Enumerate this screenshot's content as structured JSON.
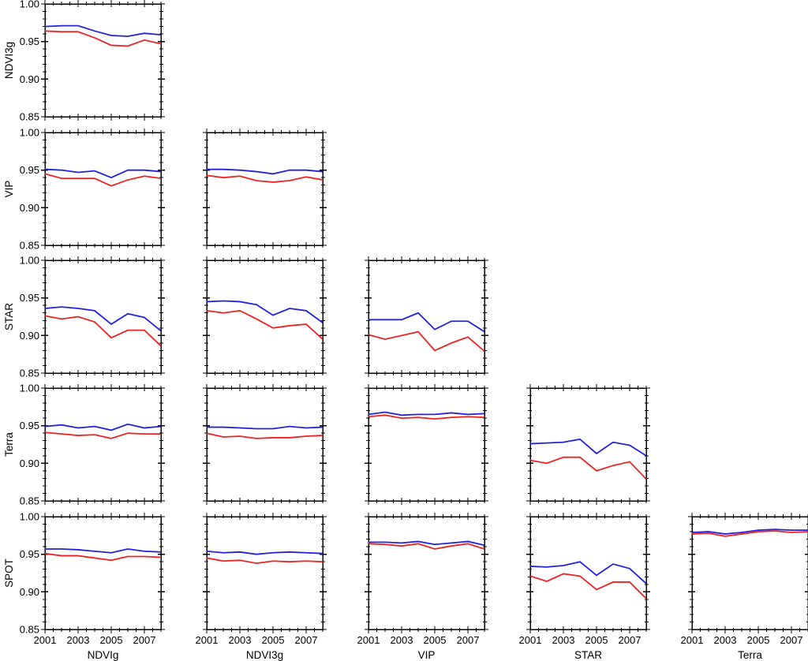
{
  "figure": {
    "background": "#ffffff",
    "axis_color": "#000000",
    "text_color": "#000000",
    "row_labels": [
      "NDVI3g",
      "VIP",
      "STAR",
      "Terra",
      "SPOT"
    ],
    "col_labels": [
      "NDVIg",
      "NDVI3g",
      "VIP",
      "STAR",
      "Terra"
    ]
  },
  "series_colors": {
    "blue": "#2222dd",
    "red": "#ee2222"
  },
  "axes": {
    "xlim": [
      2001,
      2008
    ],
    "ylim": [
      0.85,
      1.0
    ],
    "x_major_ticks": [
      2001,
      2003,
      2005,
      2007
    ],
    "x_tick_labels": [
      "2001",
      "2003",
      "2005",
      "2007"
    ],
    "x_minor_step": 0.5,
    "y_major_ticks": [
      0.85,
      0.9,
      0.95,
      1.0
    ],
    "y_tick_labels": [
      "0.85",
      "0.90",
      "0.95",
      "1.00"
    ],
    "y_minor_step": 0.01,
    "grid": false,
    "legend": "none"
  },
  "chart_data": [
    {
      "type": "line",
      "row": 0,
      "col": 0,
      "y_dataset": "NDVI3g",
      "x_dataset": "NDVIg",
      "x": [
        2001,
        2002,
        2003,
        2004,
        2005,
        2006,
        2007,
        2008
      ],
      "series": [
        {
          "name": "blue",
          "values": [
            0.97,
            0.971,
            0.971,
            0.964,
            0.958,
            0.957,
            0.961,
            0.959
          ]
        },
        {
          "name": "red",
          "values": [
            0.964,
            0.963,
            0.963,
            0.955,
            0.945,
            0.944,
            0.952,
            0.947
          ]
        }
      ]
    },
    {
      "type": "line",
      "row": 1,
      "col": 0,
      "y_dataset": "VIP",
      "x_dataset": "NDVIg",
      "x": [
        2001,
        2002,
        2003,
        2004,
        2005,
        2006,
        2007,
        2008
      ],
      "series": [
        {
          "name": "blue",
          "values": [
            0.951,
            0.95,
            0.947,
            0.949,
            0.94,
            0.95,
            0.95,
            0.948
          ]
        },
        {
          "name": "red",
          "values": [
            0.945,
            0.939,
            0.939,
            0.939,
            0.929,
            0.937,
            0.942,
            0.939
          ]
        }
      ]
    },
    {
      "type": "line",
      "row": 1,
      "col": 1,
      "y_dataset": "VIP",
      "x_dataset": "NDVI3g",
      "x": [
        2001,
        2002,
        2003,
        2004,
        2005,
        2006,
        2007,
        2008
      ],
      "series": [
        {
          "name": "blue",
          "values": [
            0.951,
            0.951,
            0.95,
            0.948,
            0.945,
            0.95,
            0.95,
            0.948
          ]
        },
        {
          "name": "red",
          "values": [
            0.943,
            0.94,
            0.942,
            0.936,
            0.934,
            0.936,
            0.941,
            0.937
          ]
        }
      ]
    },
    {
      "type": "line",
      "row": 2,
      "col": 0,
      "y_dataset": "STAR",
      "x_dataset": "NDVIg",
      "x": [
        2001,
        2002,
        2003,
        2004,
        2005,
        2006,
        2007,
        2008
      ],
      "series": [
        {
          "name": "blue",
          "values": [
            0.936,
            0.938,
            0.936,
            0.933,
            0.915,
            0.929,
            0.924,
            0.906
          ]
        },
        {
          "name": "red",
          "values": [
            0.926,
            0.922,
            0.925,
            0.918,
            0.897,
            0.907,
            0.907,
            0.886
          ]
        }
      ]
    },
    {
      "type": "line",
      "row": 2,
      "col": 1,
      "y_dataset": "STAR",
      "x_dataset": "NDVI3g",
      "x": [
        2001,
        2002,
        2003,
        2004,
        2005,
        2006,
        2007,
        2008
      ],
      "series": [
        {
          "name": "blue",
          "values": [
            0.945,
            0.946,
            0.945,
            0.941,
            0.927,
            0.936,
            0.933,
            0.917
          ]
        },
        {
          "name": "red",
          "values": [
            0.933,
            0.93,
            0.933,
            0.922,
            0.91,
            0.913,
            0.915,
            0.895
          ]
        }
      ]
    },
    {
      "type": "line",
      "row": 2,
      "col": 2,
      "y_dataset": "STAR",
      "x_dataset": "VIP",
      "x": [
        2001,
        2002,
        2003,
        2004,
        2005,
        2006,
        2007,
        2008
      ],
      "series": [
        {
          "name": "blue",
          "values": [
            0.921,
            0.921,
            0.921,
            0.93,
            0.908,
            0.919,
            0.919,
            0.905
          ]
        },
        {
          "name": "red",
          "values": [
            0.901,
            0.895,
            0.9,
            0.905,
            0.88,
            0.89,
            0.898,
            0.879
          ]
        }
      ]
    },
    {
      "type": "line",
      "row": 3,
      "col": 0,
      "y_dataset": "Terra",
      "x_dataset": "NDVIg",
      "x": [
        2001,
        2002,
        2003,
        2004,
        2005,
        2006,
        2007,
        2008
      ],
      "series": [
        {
          "name": "blue",
          "values": [
            0.949,
            0.951,
            0.947,
            0.949,
            0.944,
            0.952,
            0.947,
            0.949
          ]
        },
        {
          "name": "red",
          "values": [
            0.941,
            0.939,
            0.937,
            0.938,
            0.933,
            0.94,
            0.939,
            0.939
          ]
        }
      ]
    },
    {
      "type": "line",
      "row": 3,
      "col": 1,
      "y_dataset": "Terra",
      "x_dataset": "NDVI3g",
      "x": [
        2001,
        2002,
        2003,
        2004,
        2005,
        2006,
        2007,
        2008
      ],
      "series": [
        {
          "name": "blue",
          "values": [
            0.948,
            0.948,
            0.947,
            0.946,
            0.946,
            0.949,
            0.947,
            0.948
          ]
        },
        {
          "name": "red",
          "values": [
            0.94,
            0.935,
            0.936,
            0.933,
            0.934,
            0.934,
            0.936,
            0.937
          ]
        }
      ]
    },
    {
      "type": "line",
      "row": 3,
      "col": 2,
      "y_dataset": "Terra",
      "x_dataset": "VIP",
      "x": [
        2001,
        2002,
        2003,
        2004,
        2005,
        2006,
        2007,
        2008
      ],
      "series": [
        {
          "name": "blue",
          "values": [
            0.965,
            0.968,
            0.964,
            0.965,
            0.965,
            0.967,
            0.965,
            0.966
          ]
        },
        {
          "name": "red",
          "values": [
            0.962,
            0.964,
            0.96,
            0.961,
            0.959,
            0.961,
            0.962,
            0.961
          ]
        }
      ]
    },
    {
      "type": "line",
      "row": 3,
      "col": 3,
      "y_dataset": "Terra",
      "x_dataset": "STAR",
      "x": [
        2001,
        2002,
        2003,
        2004,
        2005,
        2006,
        2007,
        2008
      ],
      "series": [
        {
          "name": "blue",
          "values": [
            0.926,
            0.927,
            0.928,
            0.932,
            0.913,
            0.928,
            0.924,
            0.91
          ]
        },
        {
          "name": "red",
          "values": [
            0.904,
            0.9,
            0.908,
            0.908,
            0.89,
            0.897,
            0.902,
            0.879
          ]
        }
      ]
    },
    {
      "type": "line",
      "row": 4,
      "col": 0,
      "y_dataset": "SPOT",
      "x_dataset": "NDVIg",
      "x": [
        2001,
        2002,
        2003,
        2004,
        2005,
        2006,
        2007,
        2008
      ],
      "series": [
        {
          "name": "blue",
          "values": [
            0.957,
            0.957,
            0.956,
            0.954,
            0.952,
            0.957,
            0.954,
            0.953
          ]
        },
        {
          "name": "red",
          "values": [
            0.951,
            0.948,
            0.948,
            0.945,
            0.942,
            0.947,
            0.947,
            0.946
          ]
        }
      ]
    },
    {
      "type": "line",
      "row": 4,
      "col": 1,
      "y_dataset": "SPOT",
      "x_dataset": "NDVI3g",
      "x": [
        2001,
        2002,
        2003,
        2004,
        2005,
        2006,
        2007,
        2008
      ],
      "series": [
        {
          "name": "blue",
          "values": [
            0.954,
            0.952,
            0.953,
            0.95,
            0.952,
            0.953,
            0.952,
            0.951
          ]
        },
        {
          "name": "red",
          "values": [
            0.945,
            0.941,
            0.942,
            0.938,
            0.941,
            0.94,
            0.941,
            0.94
          ]
        }
      ]
    },
    {
      "type": "line",
      "row": 4,
      "col": 2,
      "y_dataset": "SPOT",
      "x_dataset": "VIP",
      "x": [
        2001,
        2002,
        2003,
        2004,
        2005,
        2006,
        2007,
        2008
      ],
      "series": [
        {
          "name": "blue",
          "values": [
            0.966,
            0.966,
            0.965,
            0.967,
            0.963,
            0.965,
            0.967,
            0.962
          ]
        },
        {
          "name": "red",
          "values": [
            0.964,
            0.963,
            0.961,
            0.964,
            0.957,
            0.961,
            0.964,
            0.957
          ]
        }
      ]
    },
    {
      "type": "line",
      "row": 4,
      "col": 3,
      "y_dataset": "SPOT",
      "x_dataset": "STAR",
      "x": [
        2001,
        2002,
        2003,
        2004,
        2005,
        2006,
        2007,
        2008
      ],
      "series": [
        {
          "name": "blue",
          "values": [
            0.934,
            0.933,
            0.935,
            0.94,
            0.922,
            0.937,
            0.931,
            0.911
          ]
        },
        {
          "name": "red",
          "values": [
            0.921,
            0.914,
            0.924,
            0.921,
            0.903,
            0.913,
            0.913,
            0.891
          ]
        }
      ]
    },
    {
      "type": "line",
      "row": 4,
      "col": 4,
      "y_dataset": "SPOT",
      "x_dataset": "Terra",
      "x": [
        2001,
        2002,
        2003,
        2004,
        2005,
        2006,
        2007,
        2008
      ],
      "series": [
        {
          "name": "blue",
          "values": [
            0.979,
            0.98,
            0.977,
            0.979,
            0.982,
            0.983,
            0.982,
            0.982
          ]
        },
        {
          "name": "red",
          "values": [
            0.977,
            0.978,
            0.974,
            0.977,
            0.98,
            0.981,
            0.979,
            0.98
          ]
        }
      ]
    }
  ]
}
